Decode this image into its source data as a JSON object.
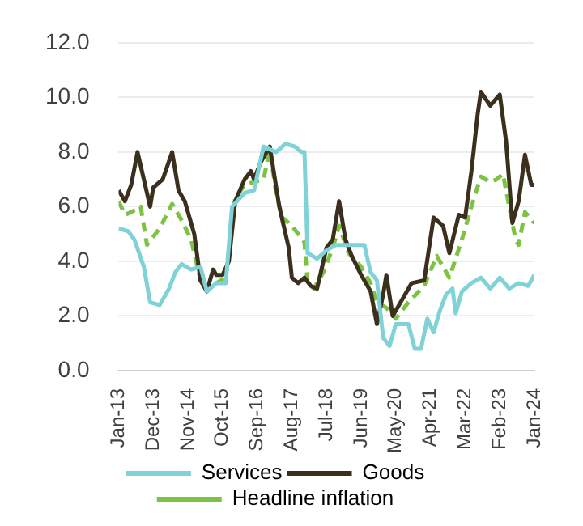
{
  "chart_data": {
    "type": "line",
    "xlim": [
      "2013-01",
      "2024-01"
    ],
    "xticks": [
      {
        "value": "2013-01",
        "label": "Jan-13"
      },
      {
        "value": "2013-12",
        "label": "Dec-13"
      },
      {
        "value": "2014-11",
        "label": "Nov-14"
      },
      {
        "value": "2015-10",
        "label": "Oct-15"
      },
      {
        "value": "2016-09",
        "label": "Sep-16"
      },
      {
        "value": "2017-08",
        "label": "Aug-17"
      },
      {
        "value": "2018-07",
        "label": "Jul-18"
      },
      {
        "value": "2019-06",
        "label": "Jun-19"
      },
      {
        "value": "2020-05",
        "label": "May-20"
      },
      {
        "value": "2021-04",
        "label": "Apr-21"
      },
      {
        "value": "2022-03",
        "label": "Mar-22"
      },
      {
        "value": "2023-02",
        "label": "Feb-23"
      },
      {
        "value": "2024-01",
        "label": "Jan-24"
      }
    ],
    "ylim": [
      0,
      12
    ],
    "yticks": [
      {
        "value": 0,
        "label": "0.0"
      },
      {
        "value": 2,
        "label": "2.0"
      },
      {
        "value": 4,
        "label": "4.0"
      },
      {
        "value": 6,
        "label": "6.0"
      },
      {
        "value": 8,
        "label": "8.0"
      },
      {
        "value": 10,
        "label": "10.0"
      },
      {
        "value": 12,
        "label": "12.0"
      }
    ],
    "grid": "y",
    "legend": "bottom",
    "marker": "none",
    "series": [
      {
        "name": "Services",
        "color": "#7fd3d6",
        "line_style": "solid",
        "x": [
          "2013-01",
          "2013-04",
          "2013-06",
          "2013-09",
          "2013-11",
          "2014-02",
          "2014-05",
          "2014-07",
          "2014-09",
          "2014-12",
          "2015-03",
          "2015-05",
          "2015-08",
          "2015-11",
          "2016-01",
          "2016-05",
          "2016-08",
          "2016-11",
          "2017-03",
          "2017-06",
          "2017-09",
          "2017-11",
          "2017-12",
          "2018-01",
          "2018-04",
          "2018-07",
          "2018-10",
          "2019-03",
          "2019-07",
          "2019-09",
          "2019-11",
          "2020-01",
          "2020-03",
          "2020-05",
          "2020-09",
          "2020-11",
          "2021-01",
          "2021-03",
          "2021-05",
          "2021-07",
          "2021-09",
          "2021-11",
          "2021-12",
          "2022-02",
          "2022-05",
          "2022-08",
          "2022-11",
          "2023-02",
          "2023-05",
          "2023-08",
          "2023-11",
          "2024-01"
        ],
        "values": [
          5.2,
          5.1,
          4.8,
          3.8,
          2.5,
          2.4,
          3.0,
          3.6,
          3.9,
          3.7,
          3.8,
          2.9,
          3.2,
          3.2,
          6.0,
          6.5,
          6.6,
          8.2,
          8.0,
          8.3,
          8.2,
          8.0,
          8.0,
          4.3,
          4.1,
          4.4,
          4.6,
          4.6,
          4.6,
          3.6,
          3.3,
          1.2,
          0.9,
          1.7,
          1.7,
          0.8,
          0.8,
          1.9,
          1.4,
          2.2,
          2.8,
          3.0,
          2.1,
          2.9,
          3.2,
          3.4,
          3.0,
          3.4,
          3.0,
          3.2,
          3.1,
          3.5
        ]
      },
      {
        "name": "Goods",
        "color": "#3b2f1e",
        "line_style": "solid",
        "x": [
          "2013-01",
          "2013-03",
          "2013-05",
          "2013-07",
          "2013-09",
          "2013-11",
          "2013-12",
          "2014-03",
          "2014-06",
          "2014-08",
          "2014-10",
          "2015-01",
          "2015-03",
          "2015-05",
          "2015-07",
          "2015-08",
          "2015-10",
          "2015-12",
          "2016-02",
          "2016-05",
          "2016-07",
          "2016-08",
          "2016-10",
          "2017-01",
          "2017-04",
          "2017-07",
          "2017-08",
          "2017-10",
          "2017-12",
          "2018-02",
          "2018-04",
          "2018-07",
          "2018-09",
          "2018-11",
          "2019-01",
          "2019-03",
          "2019-06",
          "2019-09",
          "2019-11",
          "2020-01",
          "2020-02",
          "2020-04",
          "2020-07",
          "2020-10",
          "2021-02",
          "2021-05",
          "2021-08",
          "2021-10",
          "2022-01",
          "2022-03",
          "2022-05",
          "2022-07",
          "2022-08",
          "2022-11",
          "2023-02",
          "2023-04",
          "2023-06",
          "2023-08",
          "2023-10",
          "2023-12",
          "2024-01"
        ],
        "values": [
          6.6,
          6.2,
          6.8,
          8.0,
          7.0,
          6.0,
          6.7,
          7.0,
          8.0,
          6.6,
          6.2,
          5.0,
          3.3,
          2.9,
          3.7,
          3.5,
          3.5,
          4.0,
          6.2,
          7.0,
          7.3,
          7.0,
          7.6,
          8.2,
          6.0,
          4.5,
          3.4,
          3.2,
          3.4,
          3.1,
          3.0,
          4.5,
          4.8,
          6.2,
          4.8,
          4.2,
          3.5,
          2.9,
          1.7,
          2.8,
          3.5,
          2.0,
          2.6,
          3.2,
          3.3,
          5.6,
          5.3,
          4.3,
          5.7,
          5.6,
          7.3,
          9.4,
          10.2,
          9.7,
          10.1,
          8.4,
          5.4,
          6.2,
          7.9,
          6.8,
          6.8
        ]
      },
      {
        "name": "Headline inflation",
        "color": "#7dc242",
        "line_style": "dashed",
        "x": [
          "2013-01",
          "2013-03",
          "2013-05",
          "2013-08",
          "2013-10",
          "2013-12",
          "2014-02",
          "2014-06",
          "2014-09",
          "2014-12",
          "2015-03",
          "2015-05",
          "2015-08",
          "2015-11",
          "2016-02",
          "2016-05",
          "2016-08",
          "2016-11",
          "2017-01",
          "2017-03",
          "2017-05",
          "2017-08",
          "2017-12",
          "2018-01",
          "2018-03",
          "2018-06",
          "2018-09",
          "2018-11",
          "2019-02",
          "2019-06",
          "2019-09",
          "2019-11",
          "2020-02",
          "2020-05",
          "2020-09",
          "2021-02",
          "2021-06",
          "2021-10",
          "2022-02",
          "2022-05",
          "2022-08",
          "2022-11",
          "2023-01",
          "2023-03",
          "2023-05",
          "2023-07",
          "2023-08",
          "2023-10",
          "2024-01"
        ],
        "values": [
          6.2,
          5.7,
          5.8,
          6.0,
          4.6,
          4.9,
          5.2,
          6.1,
          5.5,
          4.8,
          3.3,
          2.9,
          3.2,
          3.4,
          6.3,
          6.8,
          6.9,
          7.0,
          8.1,
          6.5,
          5.6,
          5.3,
          4.7,
          3.2,
          3.0,
          3.6,
          4.5,
          5.3,
          4.3,
          3.8,
          3.2,
          2.5,
          2.3,
          1.9,
          2.5,
          3.1,
          4.2,
          3.4,
          4.8,
          6.0,
          7.1,
          6.9,
          7.0,
          7.2,
          6.0,
          4.8,
          4.6,
          5.8,
          5.4
        ]
      }
    ]
  }
}
